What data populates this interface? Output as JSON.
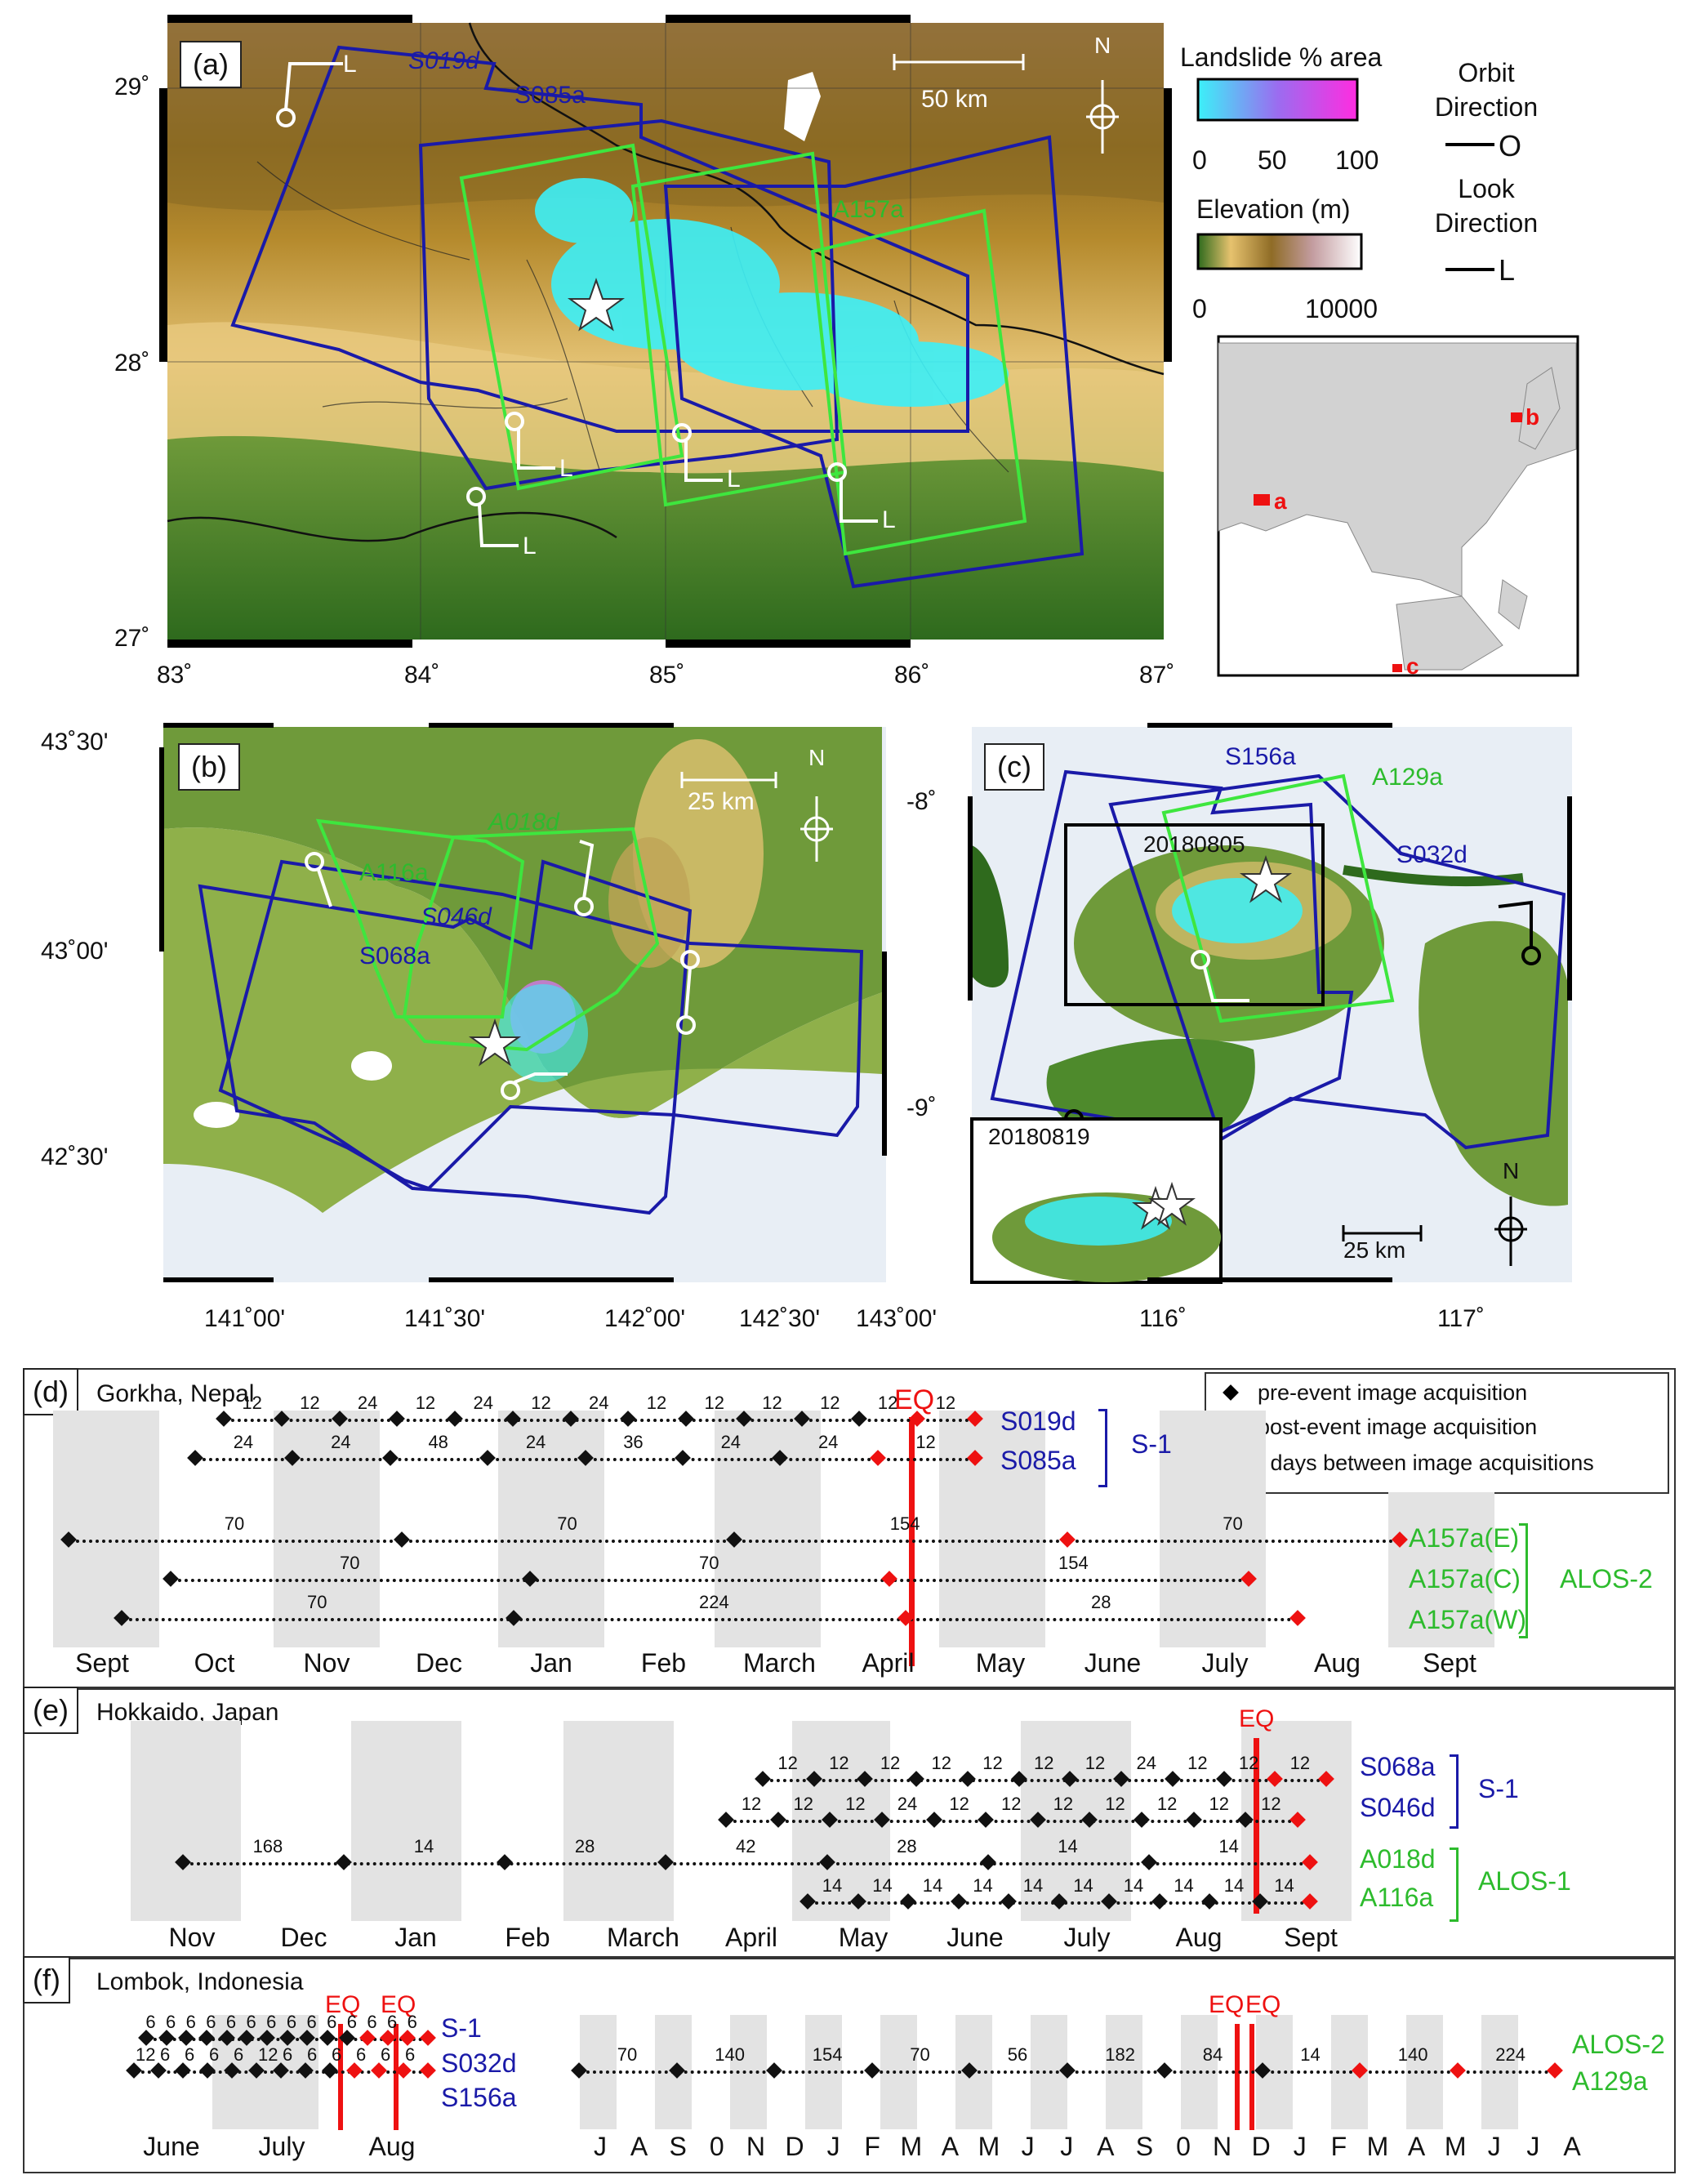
{
  "panel_a": {
    "label": "(a)",
    "lat_ticks": [
      "29˚",
      "28˚",
      "27˚"
    ],
    "lon_ticks": [
      "83˚",
      "84˚",
      "85˚",
      "86˚",
      "87˚"
    ],
    "tracks": [
      "S019d",
      "S085a",
      "A157a"
    ],
    "scale_text": "50 km",
    "north": "N"
  },
  "legend": {
    "landslide_title": "Landslide % area",
    "landslide_ticks": [
      "0",
      "50",
      "100"
    ],
    "elevation_title": "Elevation (m)",
    "elevation_ticks": [
      "0",
      "10000"
    ],
    "orbit_label": "Orbit\nDirection",
    "orbit_symbol": "O",
    "look_label": "Look\nDirection",
    "look_symbol": "L"
  },
  "inset": {
    "markers": [
      "a",
      "b",
      "c"
    ]
  },
  "panel_b": {
    "label": "(b)",
    "lat_ticks": [
      "43˚30'",
      "43˚00'",
      "42˚30'"
    ],
    "lon_ticks": [
      "141˚00'",
      "141˚30'",
      "142˚00'",
      "142˚30'",
      "143˚00'"
    ],
    "tracks": [
      "A018d",
      "A116a",
      "S046d",
      "S068a"
    ],
    "scale_text": "25 km",
    "north": "N"
  },
  "panel_c": {
    "label": "(c)",
    "lat_ticks": [
      "-8˚",
      "-9˚"
    ],
    "lon_ticks": [
      "116˚",
      "117˚"
    ],
    "tracks": [
      "S156a",
      "A129a",
      "S032d"
    ],
    "box1_date": "20180805",
    "box2_date": "20180819",
    "scale_text": "25 km",
    "north": "N"
  },
  "timeline_legend": {
    "pre": "pre-event image acquisition",
    "post": "post-event image acquisition",
    "days": "‘154’ days between image acquisitions"
  },
  "panel_d": {
    "label": "(d)",
    "title": "Gorkha, Nepal",
    "eq": "EQ",
    "months": [
      "Sept",
      "Oct",
      "Nov",
      "Dec",
      "Jan",
      "Feb",
      "March",
      "April",
      "May",
      "June",
      "July",
      "Aug",
      "Sept"
    ],
    "rows": [
      {
        "name": "S019d",
        "gaps": [
          "12",
          "12",
          "24",
          "12",
          "24",
          "12",
          "24",
          "12",
          "12",
          "12",
          "12",
          "12",
          "12"
        ]
      },
      {
        "name": "S085a",
        "gaps": [
          "24",
          "24",
          "48",
          "24",
          "36",
          "24",
          "24",
          "12"
        ]
      },
      {
        "name": "A157a(E)",
        "gaps": [
          "70",
          "70",
          "154",
          "70"
        ]
      },
      {
        "name": "A157a(C)",
        "gaps": [
          "70",
          "70",
          "154"
        ]
      },
      {
        "name": "A157a(W)",
        "gaps": [
          "70",
          "224",
          "28"
        ]
      }
    ],
    "group1": "S-1",
    "group2": "ALOS-2"
  },
  "panel_e": {
    "label": "(e)",
    "title": "Hokkaido, Japan",
    "eq": "EQ",
    "months": [
      "Nov",
      "Dec",
      "Jan",
      "Feb",
      "March",
      "April",
      "May",
      "June",
      "July",
      "Aug",
      "Sept"
    ],
    "rows": [
      {
        "name": "S068a",
        "gaps": [
          "12",
          "12",
          "12",
          "12",
          "12",
          "12",
          "12",
          "24",
          "12",
          "12",
          "12"
        ]
      },
      {
        "name": "S046d",
        "gaps": [
          "12",
          "12",
          "12",
          "24",
          "12",
          "12",
          "12",
          "12",
          "12",
          "12",
          "12"
        ]
      },
      {
        "name": "A018d",
        "gaps": [
          "168",
          "14",
          "28",
          "42",
          "28",
          "14",
          "14"
        ]
      },
      {
        "name": "A116a",
        "gaps": [
          "14",
          "14",
          "14",
          "14",
          "14",
          "14",
          "14",
          "14",
          "14",
          "14"
        ]
      }
    ],
    "group1": "S-1",
    "group2": "ALOS-1"
  },
  "panel_f": {
    "label": "(f)",
    "title": "Lombok, Indonesia",
    "eq": "EQ",
    "s1_group": "S-1",
    "rows_left": [
      {
        "name": "S032d",
        "gaps": [
          "6",
          "6",
          "6",
          "6",
          "6",
          "6",
          "6",
          "6",
          "6",
          "6",
          "6",
          "6",
          "6",
          "6"
        ]
      },
      {
        "name": "S156a",
        "gaps": [
          "12",
          "6",
          "6",
          "6",
          "6",
          "12",
          "6",
          "6",
          "6",
          "6",
          "6",
          "6"
        ]
      }
    ],
    "months_left": [
      "June",
      "July",
      "Aug"
    ],
    "alos_group": "ALOS-2",
    "row_right": {
      "name": "A129a",
      "gaps": [
        "70",
        "140",
        "154",
        "70",
        "56",
        "182",
        "84",
        "14",
        "140",
        "224"
      ]
    },
    "months_right": [
      "J",
      "A",
      "S",
      "0",
      "N",
      "D",
      "J",
      "F",
      "M",
      "A",
      "M",
      "J",
      "J",
      "A",
      "S",
      "0",
      "N",
      "D",
      "J",
      "F",
      "M",
      "A",
      "M",
      "J",
      "J",
      "A"
    ]
  }
}
